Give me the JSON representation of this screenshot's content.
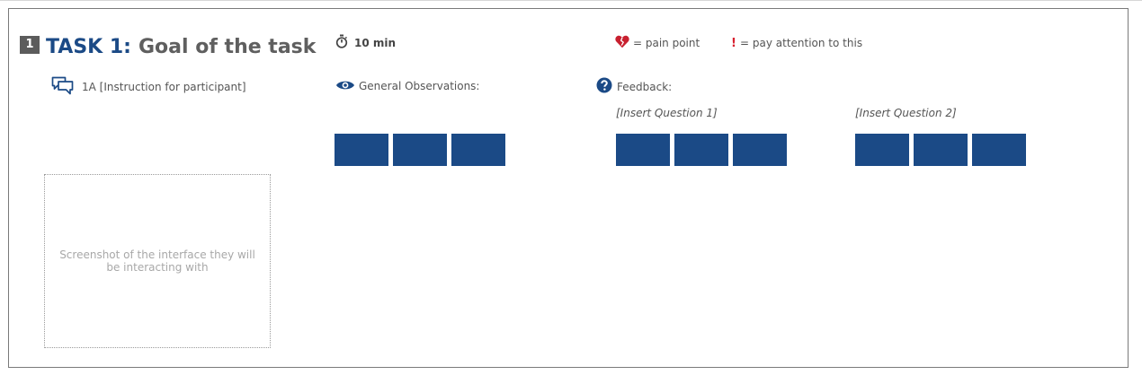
{
  "task": {
    "number": "1",
    "label": "TASK 1:",
    "goal": "Goal of the task",
    "duration": "10 min"
  },
  "legend": {
    "pain_point": "= pain point",
    "attention": "= pay attention to this",
    "attention_symbol": "!"
  },
  "instruction": {
    "text": "1A [Instruction for participant]"
  },
  "observations": {
    "label": "General Observations:"
  },
  "feedback": {
    "label": "Feedback:",
    "questions": [
      "[Insert Question 1]",
      "[Insert Question 2]"
    ]
  },
  "screenshot_placeholder": {
    "text": "Screenshot of the interface they will be interacting with"
  },
  "colors": {
    "accent_blue": "#1b4a86",
    "pain_red": "#c8202f",
    "badge_gray": "#5c5c5c"
  }
}
